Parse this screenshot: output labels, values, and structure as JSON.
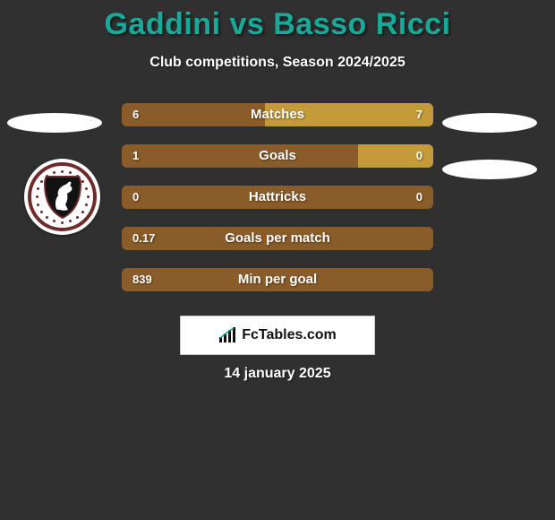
{
  "header": {
    "title_prefix": "Gaddini",
    "title_mid": " vs ",
    "title_suffix": "Basso Ricci",
    "title_color": "#18a999",
    "subtitle": "Club competitions, Season 2024/2025",
    "subtitle_color": "#ffffff"
  },
  "colors": {
    "bar_left": "#8a5c29",
    "bar_right": "#c49a3a",
    "lozenge": "#ffffff",
    "background": "#303030"
  },
  "stats": [
    {
      "label": "Matches",
      "left_label": "6",
      "right_label": "7",
      "left_pct": 46,
      "right_pct": 54
    },
    {
      "label": "Goals",
      "left_label": "1",
      "right_label": "0",
      "left_pct": 76,
      "right_pct": 24
    },
    {
      "label": "Hattricks",
      "left_label": "0",
      "right_label": "0",
      "left_pct": 50,
      "right_pct": 0
    },
    {
      "label": "Goals per match",
      "left_label": "0.17",
      "right_label": "",
      "left_pct": 95,
      "right_pct": 0
    },
    {
      "label": "Min per goal",
      "left_label": "839",
      "right_label": "",
      "left_pct": 95,
      "right_pct": 0
    }
  ],
  "brand": {
    "text": "FcTables.com"
  },
  "date": {
    "text": "14 january 2025"
  },
  "crest": {
    "ring_color": "#6e2b2b",
    "shield_fill": "#121212",
    "shield_border": "#6e2b2b",
    "horse_fill": "#ffffff"
  }
}
